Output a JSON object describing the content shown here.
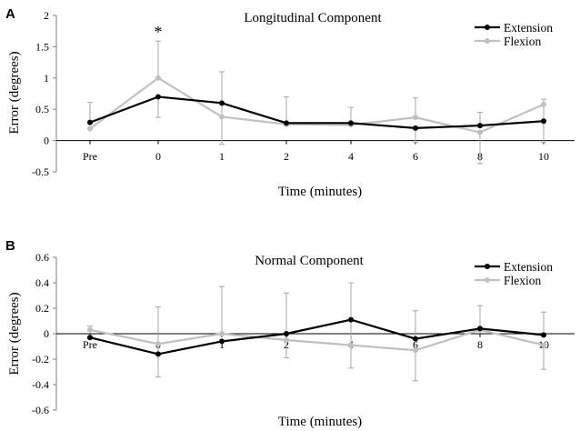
{
  "chart_data": [
    {
      "type": "line",
      "panel_label": "A",
      "title": "Longitudinal Component",
      "xlabel": "Time (minutes)",
      "ylabel": "Error (degrees)",
      "categories": [
        "Pre",
        "0",
        "1",
        "2",
        "4",
        "6",
        "8",
        "10"
      ],
      "ylim": [
        -0.5,
        2
      ],
      "yticks": [
        -0.5,
        0,
        0.5,
        1,
        1.5,
        2
      ],
      "ytick_labels": [
        "-0.5",
        "0",
        "0.5",
        "1",
        "1.5",
        "2"
      ],
      "legend_position": "top-right",
      "annotation": {
        "text": "*",
        "category": "0"
      },
      "series": [
        {
          "name": "Extension",
          "color": "#000000",
          "values": [
            0.29,
            0.7,
            0.6,
            0.28,
            0.28,
            0.2,
            0.24,
            0.31
          ],
          "err_upper": [
            0.61,
            null,
            null,
            0.7,
            0.53,
            null,
            0.45,
            null
          ],
          "err_lower": [
            null,
            0.37,
            null,
            null,
            null,
            -0.03,
            null,
            null
          ]
        },
        {
          "name": "Flexion",
          "color": "#c0c0c0",
          "values": [
            0.19,
            1.0,
            0.38,
            0.26,
            0.25,
            0.37,
            0.13,
            0.58
          ],
          "err_upper": [
            null,
            1.59,
            1.1,
            null,
            null,
            0.68,
            null,
            0.66
          ],
          "err_lower": [
            null,
            null,
            -0.06,
            null,
            null,
            null,
            -0.37,
            -0.03
          ]
        }
      ]
    },
    {
      "type": "line",
      "panel_label": "B",
      "title": "Normal Component",
      "xlabel": "Time (minutes)",
      "ylabel": "Error (degrees)",
      "categories": [
        "Pre",
        "0",
        "1",
        "2",
        "4",
        "6",
        "8",
        "10"
      ],
      "ylim": [
        -0.6,
        0.6
      ],
      "yticks": [
        -0.6,
        -0.4,
        -0.2,
        0,
        0.2,
        0.4,
        0.6
      ],
      "ytick_labels": [
        "-0.6",
        "-0.4",
        "-0.2",
        "0",
        "0.2",
        "0.4",
        "0.6"
      ],
      "legend_position": "top-right",
      "series": [
        {
          "name": "Extension",
          "color": "#000000",
          "values": [
            -0.03,
            -0.16,
            -0.06,
            0.0,
            0.11,
            -0.04,
            0.04,
            -0.01
          ],
          "err_upper": [
            null,
            null,
            null,
            0.32,
            0.4,
            null,
            0.22,
            0.17
          ],
          "err_lower": [
            null,
            null,
            null,
            null,
            -0.27,
            null,
            null,
            null
          ]
        },
        {
          "name": "Flexion",
          "color": "#c0c0c0",
          "values": [
            0.03,
            -0.08,
            0.0,
            -0.05,
            -0.09,
            -0.13,
            0.03,
            -0.09
          ],
          "err_upper": [
            0.06,
            0.21,
            0.37,
            null,
            null,
            0.18,
            null,
            null
          ],
          "err_lower": [
            null,
            -0.34,
            null,
            -0.19,
            null,
            -0.37,
            null,
            -0.28
          ]
        }
      ]
    }
  ]
}
